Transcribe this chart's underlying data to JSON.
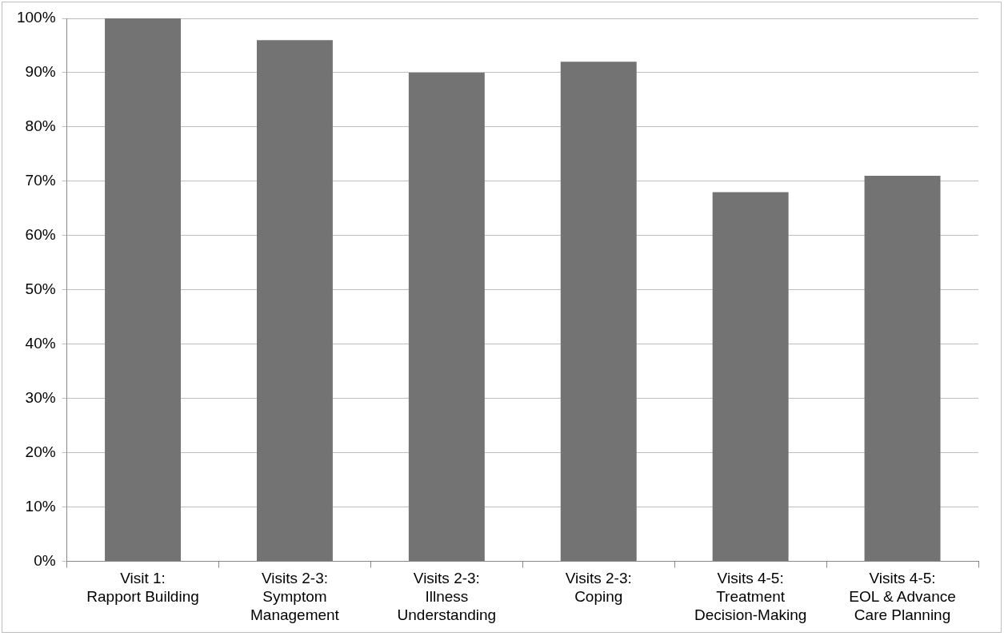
{
  "chart_data": {
    "type": "bar",
    "categories": [
      "Visit 1:\nRapport Building",
      "Visits 2-3:\nSymptom\nManagement",
      "Visits 2-3:\nIllness\nUnderstanding",
      "Visits 2-3:\nCoping",
      "Visits 4-5:\nTreatment\nDecision-Making",
      "Visits 4-5:\nEOL & Advance\nCare Planning"
    ],
    "values": [
      100,
      96,
      90,
      92,
      68,
      71
    ],
    "color": "#737373",
    "ylim": [
      0,
      100
    ],
    "yticks": [
      {
        "value": 0,
        "label": "0%"
      },
      {
        "value": 10,
        "label": "10%"
      },
      {
        "value": 20,
        "label": "20%"
      },
      {
        "value": 30,
        "label": "30%"
      },
      {
        "value": 40,
        "label": "40%"
      },
      {
        "value": 50,
        "label": "50%"
      },
      {
        "value": 60,
        "label": "60%"
      },
      {
        "value": 70,
        "label": "70%"
      },
      {
        "value": 80,
        "label": "80%"
      },
      {
        "value": 90,
        "label": "90%"
      },
      {
        "value": 100,
        "label": "100%"
      }
    ],
    "grid": "y"
  }
}
